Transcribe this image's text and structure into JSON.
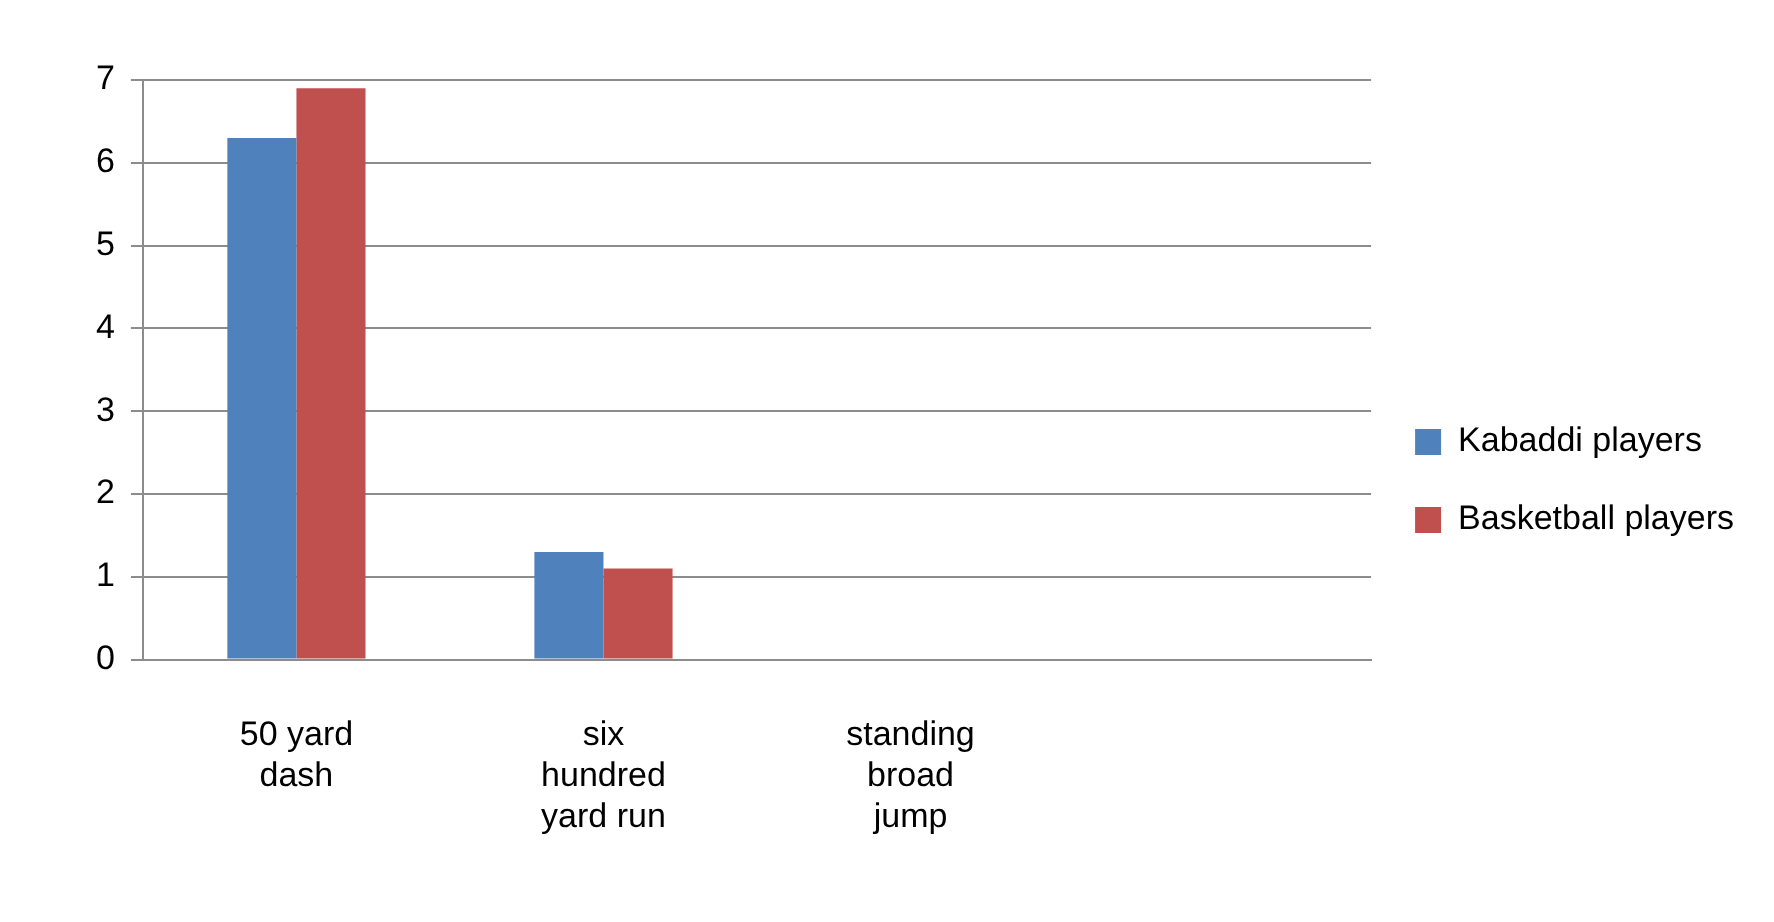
{
  "chart_data": {
    "type": "bar",
    "categories": [
      "50 yard dash",
      "six hundred yard run",
      "standing broad jump",
      null
    ],
    "series": [
      {
        "name": "Kabaddi players",
        "color": "#4f81bd",
        "values": [
          6.3,
          1.3,
          null,
          null
        ]
      },
      {
        "name": "Basketball players",
        "color": "#c0504d",
        "values": [
          6.9,
          1.1,
          null,
          null
        ]
      }
    ],
    "ylim": [
      0,
      7
    ],
    "yticks": [
      0,
      1,
      2,
      3,
      4,
      5,
      6,
      7
    ],
    "grid": "y",
    "legend": "right"
  }
}
